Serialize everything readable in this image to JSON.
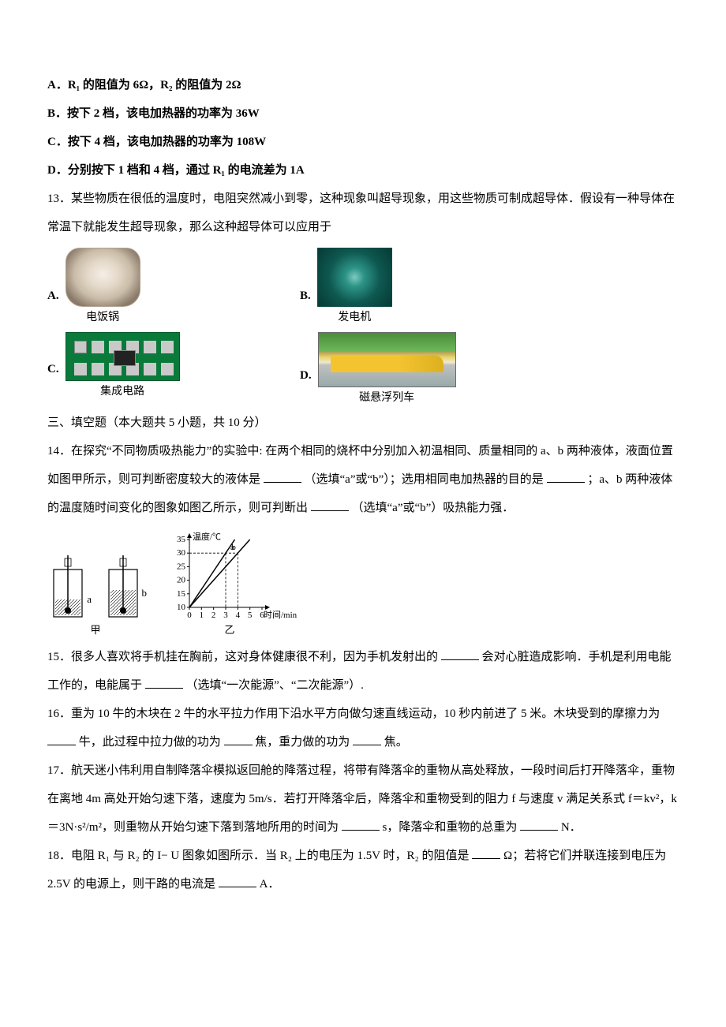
{
  "q12_options": {
    "A": "A．R₁ 的阻值为 6Ω，R₂ 的阻值为 2Ω",
    "B": "B．按下 2 档，该电加热器的功率为 36W",
    "C": "C．按下 4 档，该电加热器的功率为 108W",
    "D": "D．分别按下 1 档和 4 档，通过 R₁ 的电流差为 1A"
  },
  "q13": {
    "stem": "13．某些物质在很低的温度时，电阻突然减小到零，这种现象叫超导现象，用这些物质可制成超导体．假设有一种导体在常温下就能发生超导现象，那么这种超导体可以应用于",
    "options": {
      "A": {
        "label": "A.",
        "caption": "电饭锅"
      },
      "B": {
        "label": "B.",
        "caption": "发电机"
      },
      "C": {
        "label": "C.",
        "caption": "集成电路"
      },
      "D": {
        "label": "D.",
        "caption": "磁悬浮列车"
      }
    }
  },
  "section3": "三、填空题（本大题共 5 小题，共 10 分）",
  "q14": {
    "text_a": "14．在探究“不同物质吸热能力”的实验中: 在两个相同的烧杯中分别加入初温相同、质量相同的 a、b 两种液体，液面位置如图甲所示，则可判断密度较大的液体是",
    "text_b": "（选填“a”或“b”）；选用相同电加热器的目的是",
    "text_c": "；a、b 两种液体的温度随时间变化的图象如图乙所示，则可判断出",
    "text_d": "（选填“a”或“b”）吸热能力强．",
    "beakers": {
      "caption": "甲",
      "labels": {
        "a": "a",
        "b": "b"
      },
      "fill_heights": {
        "a": 0.35,
        "b": 0.5
      }
    },
    "chart": {
      "caption": "乙",
      "type": "line",
      "xlabel": "时间/min",
      "ylabel": "温度/℃",
      "xlim": [
        0,
        6
      ],
      "xtick_step": 1,
      "ylim": [
        10,
        35
      ],
      "ytick_step": 5,
      "bg": "#ffffff",
      "axis_color": "#000000",
      "grid_color": "#cccccc",
      "line_color": "#000000",
      "line_width": 1.5,
      "label_fontsize": 11,
      "series": {
        "a": {
          "label": "a",
          "pts": [
            [
              0,
              10
            ],
            [
              3,
              30
            ],
            [
              6,
              50
            ]
          ],
          "dash_at": {
            "x": 3,
            "y": 30
          }
        },
        "b": {
          "label": "b",
          "pts": [
            [
              0,
              10
            ],
            [
              4,
              30
            ],
            [
              6,
              40
            ]
          ],
          "dash_at": {
            "x": 4,
            "y": 30
          }
        }
      },
      "dash_y_at_30": true
    }
  },
  "q15": {
    "text_a": "15．很多人喜欢将手机挂在胸前，这对身体健康很不利，因为手机发射出的",
    "text_b": "会对心脏造成影响．手机是利用电能工作的，电能属于",
    "text_c": "（选填“一次能源”、“二次能源”）."
  },
  "q16": {
    "text_a": "16．重为 10 牛的木块在 2 牛的水平拉力作用下沿水平方向做匀速直线运动，10 秒内前进了 5 米。木块受到的摩擦力为",
    "text_b": "牛，此过程中拉力做的功为",
    "text_c": "焦，重力做的功为",
    "text_d": "焦。"
  },
  "q17": {
    "text_a": "17．航天迷小伟利用自制降落伞模拟返回舱的降落过程，将带有降落伞的重物从高处释放，一段时间后打开降落伞，重物在离地 4m 高处开始匀速下落，速度为 5m/s．若打开降落伞后，降落伞和重物受到的阻力 f 与速度 v 满足关系式 f＝kv²，k＝3N·s²/m²，则重物从开始匀速下落到落地所用的时间为",
    "text_b": "s，降落伞和重物的总重为",
    "text_c": "N．"
  },
  "q18": {
    "text_a": "18．电阻 R₁ 与 R₂ 的 I− U 图象如图所示．当 R₂ 上的电压为 1.5V 时，R₂ 的阻值是",
    "text_b": "Ω；若将它们并联连接到电压为 2.5V 的电源上，则干路的电流是",
    "text_c": "A．"
  },
  "colors": {
    "text": "#000000",
    "bg": "#ffffff"
  }
}
